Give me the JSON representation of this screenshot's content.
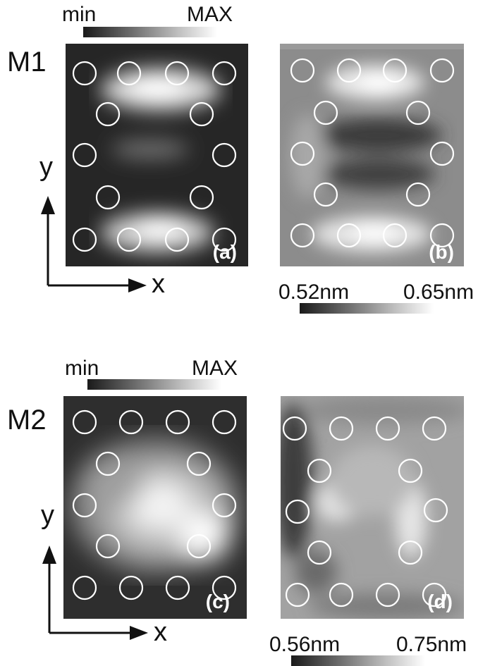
{
  "figure": {
    "rows": [
      {
        "row_label": "M1",
        "colorbar_left": {
          "min_label": "min",
          "max_label": "MAX"
        },
        "colorbar_right": {
          "min_label": "0.52nm",
          "max_label": "0.65nm"
        },
        "panels": [
          {
            "label": "(a)"
          },
          {
            "label": "(b)"
          }
        ],
        "axes": {
          "x_label": "x",
          "y_label": "y"
        }
      },
      {
        "row_label": "M2",
        "colorbar_left": {
          "min_label": "min",
          "max_label": "MAX"
        },
        "colorbar_right": {
          "min_label": "0.56nm",
          "max_label": "0.75nm"
        },
        "panels": [
          {
            "label": "(c)"
          },
          {
            "label": "(d)"
          }
        ],
        "axes": {
          "x_label": "x",
          "y_label": "y"
        }
      }
    ]
  }
}
